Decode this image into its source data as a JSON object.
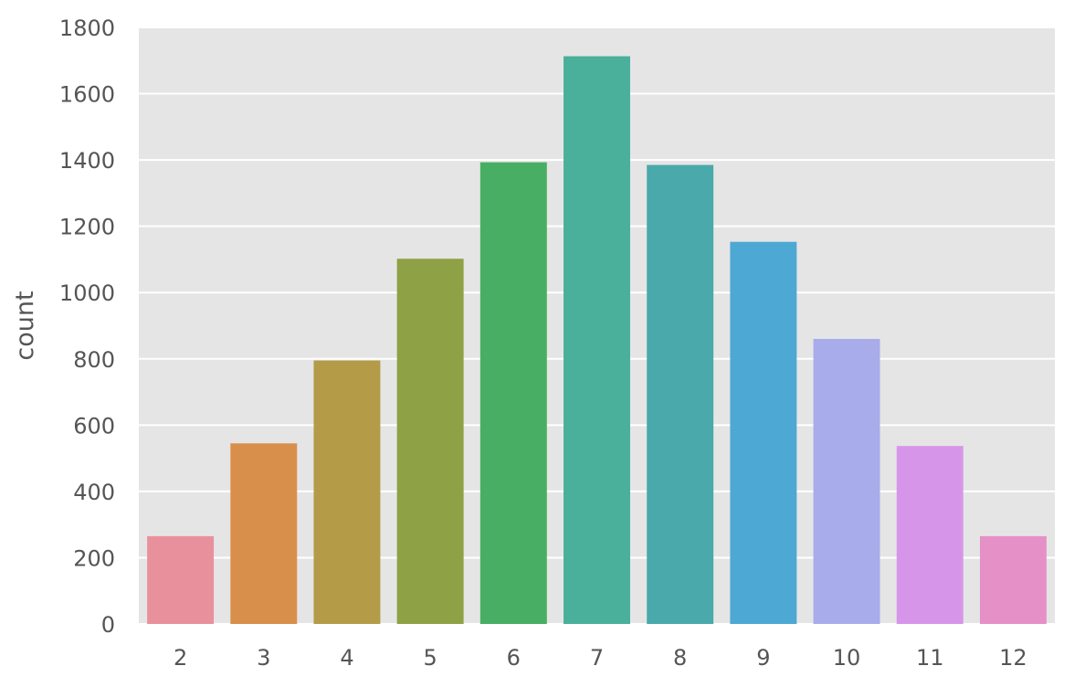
{
  "chart_data": {
    "type": "bar",
    "categories": [
      "2",
      "3",
      "4",
      "5",
      "6",
      "7",
      "8",
      "9",
      "10",
      "11",
      "12"
    ],
    "values": [
      265,
      545,
      795,
      1102,
      1393,
      1713,
      1385,
      1153,
      860,
      537,
      265
    ],
    "colors": [
      "#e8919c",
      "#d98f4c",
      "#b39b48",
      "#8ea145",
      "#48ae63",
      "#4aaf9b",
      "#4aa9aa",
      "#4da8d3",
      "#a8acea",
      "#d795ea",
      "#e591c7"
    ],
    "ylabel": "count",
    "xlabel": "",
    "ylim": [
      0,
      1800
    ],
    "yticks": [
      "0",
      "200",
      "400",
      "600",
      "800",
      "1000",
      "1200",
      "1400",
      "1600",
      "1800"
    ],
    "grid": true,
    "background": "#e5e5e5",
    "grid_color": "#ffffff"
  }
}
